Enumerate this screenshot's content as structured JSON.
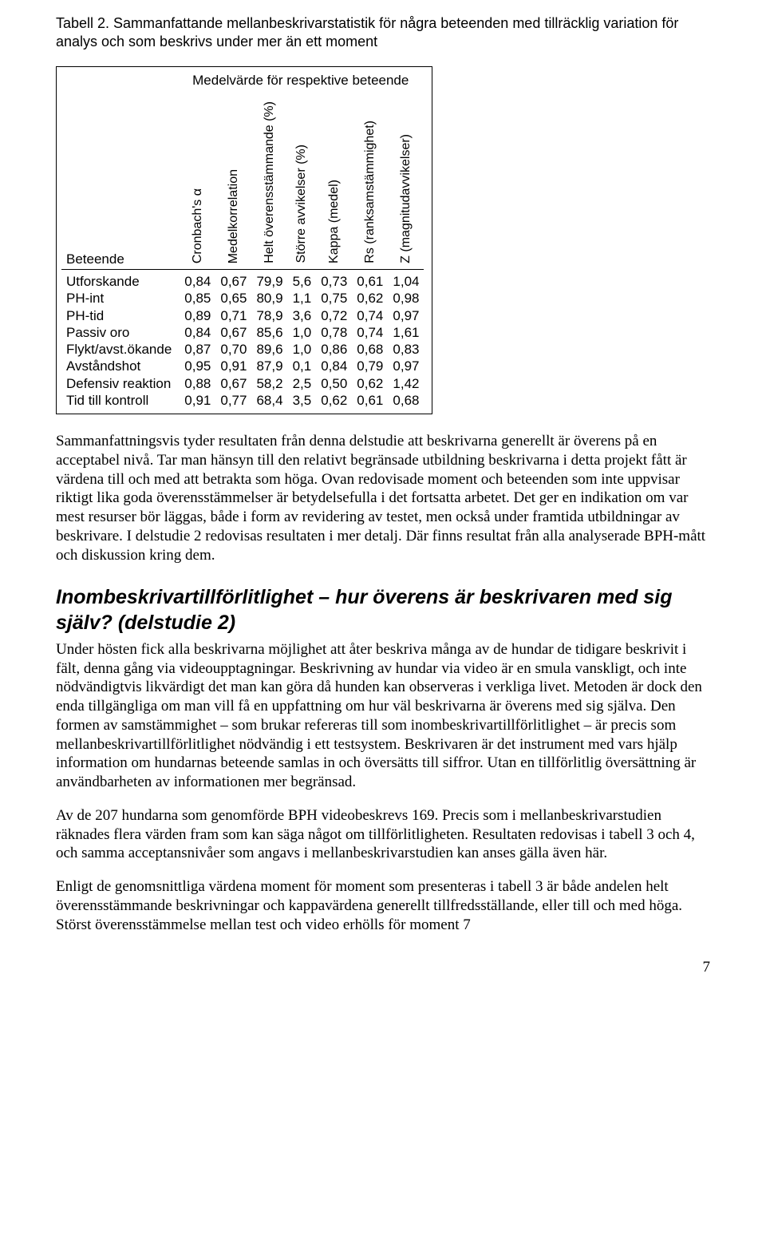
{
  "caption": "Tabell 2. Sammanfattande mellanbeskrivarstatistik för några beteenden med tillräcklig variation för analys och som beskrivs under mer än ett moment",
  "table": {
    "title": "Medelvärde för respektive beteende",
    "row_header": "Beteende",
    "columns": [
      "Cronbach's α",
      "Medelkorrelation",
      "Helt överensstämmande (%)",
      "Större avvikelser (%)",
      "Kappa (medel)",
      "Rs (ranksamstämmighet)",
      "Z (magnitudavvikelser)"
    ],
    "rows": [
      {
        "label": "Utforskande",
        "cells": [
          "0,84",
          "0,67",
          "79,9",
          "5,6",
          "0,73",
          "0,61",
          "1,04"
        ]
      },
      {
        "label": "PH-int",
        "cells": [
          "0,85",
          "0,65",
          "80,9",
          "1,1",
          "0,75",
          "0,62",
          "0,98"
        ]
      },
      {
        "label": "PH-tid",
        "cells": [
          "0,89",
          "0,71",
          "78,9",
          "3,6",
          "0,72",
          "0,74",
          "0,97"
        ]
      },
      {
        "label": "Passiv oro",
        "cells": [
          "0,84",
          "0,67",
          "85,6",
          "1,0",
          "0,78",
          "0,74",
          "1,61"
        ]
      },
      {
        "label": "Flykt/avst.ökande",
        "cells": [
          "0,87",
          "0,70",
          "89,6",
          "1,0",
          "0,86",
          "0,68",
          "0,83"
        ]
      },
      {
        "label": "Avståndshot",
        "cells": [
          "0,95",
          "0,91",
          "87,9",
          "0,1",
          "0,84",
          "0,79",
          "0,97"
        ]
      },
      {
        "label": "Defensiv reaktion",
        "cells": [
          "0,88",
          "0,67",
          "58,2",
          "2,5",
          "0,50",
          "0,62",
          "1,42"
        ]
      },
      {
        "label": "Tid till kontroll",
        "cells": [
          "0,91",
          "0,77",
          "68,4",
          "3,5",
          "0,62",
          "0,61",
          "0,68"
        ]
      }
    ]
  },
  "para1": "Sammanfattningsvis tyder resultaten från denna delstudie att beskrivarna generellt är överens på en acceptabel nivå. Tar man hänsyn till den relativt begränsade utbildning beskrivarna i detta projekt fått är värdena till och med att betrakta som höga. Ovan redovisade moment och beteenden som inte uppvisar riktigt lika goda överensstämmelser är betydelsefulla i det fortsatta arbetet. Det ger en indikation om var mest resurser bör läggas, både i form av revidering av testet, men också under framtida utbildningar av beskrivare. I delstudie 2 redovisas resultaten i mer detalj. Där finns resultat från alla analyserade BPH-mått och diskussion kring dem.",
  "heading": "Inombeskrivartillförlitlighet – hur överens är beskrivaren med sig själv? (delstudie 2)",
  "para2": "Under hösten fick alla beskrivarna möjlighet att åter beskriva många av de hundar de tidigare beskrivit i fält, denna gång via videoupptagningar. Beskrivning av hundar via video är en smula vanskligt, och inte nödvändigtvis likvärdigt det man kan göra då hunden kan observeras i verkliga livet. Metoden är dock den enda tillgängliga om man vill få en uppfattning om hur väl beskrivarna är överens med sig själva. Den formen av samstämmighet – som brukar refereras till som inombeskrivartillförlitlighet – är precis som mellanbeskrivartillförlitlighet nödvändig i ett testsystem. Beskrivaren är det instrument med vars hjälp information om hundarnas beteende samlas in och översätts till siffror. Utan en tillförlitlig översättning är användbarheten av informationen mer begränsad.",
  "para3": "Av de 207 hundarna som genomförde BPH videobeskrevs 169. Precis som i mellanbeskrivarstudien räknades flera värden fram som kan säga något om tillförlitligheten. Resultaten redovisas i tabell 3 och 4, och samma acceptansnivåer som angavs i mellanbeskrivarstudien kan anses gälla även här.",
  "para4": "Enligt de genomsnittliga värdena moment för moment som presenteras i tabell 3 är både andelen helt överensstämmande beskrivningar och kappavärdena generellt tillfredsställande, eller till och med höga. Störst överensstämmelse mellan test och video erhölls för moment 7",
  "pagenum": "7"
}
